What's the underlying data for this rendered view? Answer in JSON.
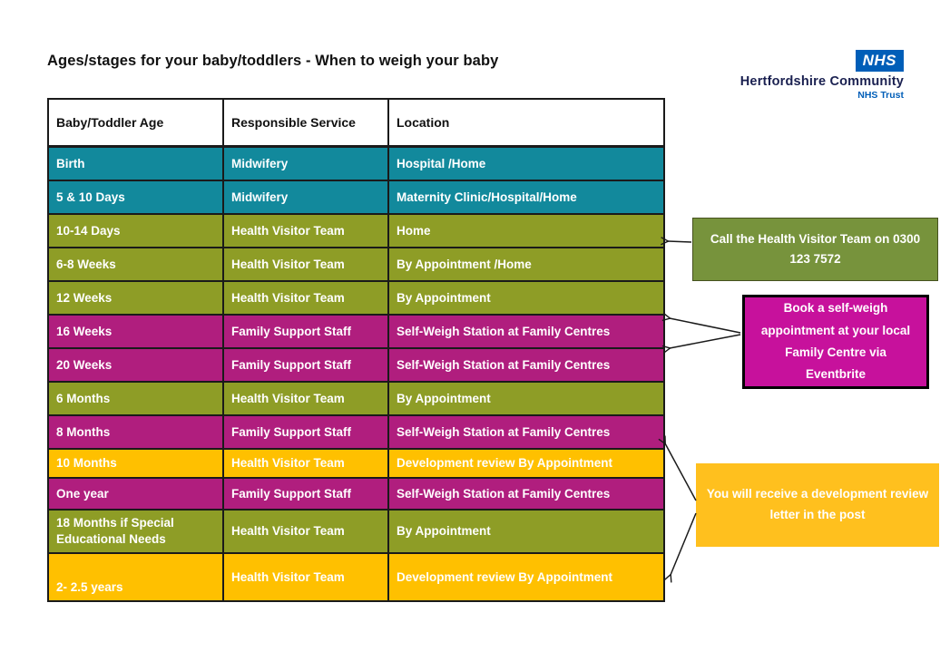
{
  "title": "Ages/stages for your baby/toddlers - When to weigh your baby",
  "logo": {
    "nhs": "NHS",
    "org": "Hertfordshire Community",
    "trust": "NHS Trust"
  },
  "colors": {
    "teal": "#12899C",
    "olive": "#8E9D26",
    "magenta": "#B01E7E",
    "yellow": "#FFC000",
    "callout_green": "#77933C",
    "callout_magenta": "#C7119C",
    "callout_yellow": "#FFC01E",
    "nhs_blue": "#005EB8"
  },
  "table": {
    "headers": [
      "Baby/Toddler Age",
      "Responsible Service",
      "Location"
    ],
    "rows": [
      {
        "age": "Birth",
        "service": "Midwifery",
        "location": "Hospital /Home",
        "color": "teal"
      },
      {
        "age": "5 & 10 Days",
        "service": "Midwifery",
        "location": "Maternity Clinic/Hospital/Home",
        "color": "teal"
      },
      {
        "age": "10-14 Days",
        "service": "Health Visitor Team",
        "location": "Home",
        "color": "olive"
      },
      {
        "age": "6-8 Weeks",
        "service": "Health Visitor Team",
        "location": "By Appointment /Home",
        "color": "olive"
      },
      {
        "age": "12 Weeks",
        "service": "Health Visitor Team",
        "location": "By Appointment",
        "color": "olive"
      },
      {
        "age": "16 Weeks",
        "service": "Family Support Staff",
        "location": "Self-Weigh Station at Family Centres",
        "color": "magenta"
      },
      {
        "age": "20 Weeks",
        "service": "Family Support Staff",
        "location": "Self-Weigh Station at Family Centres",
        "color": "magenta"
      },
      {
        "age": "6 Months",
        "service": "Health Visitor Team",
        "location": "By Appointment",
        "color": "olive"
      },
      {
        "age": "8 Months",
        "service": "Family Support Staff",
        "location": "Self-Weigh Station at Family Centres",
        "color": "magenta"
      },
      {
        "age": "10 Months",
        "service": "Health Visitor Team",
        "location": "Development review By Appointment",
        "color": "yellow"
      },
      {
        "age": "One year",
        "service": "Family Support Staff",
        "location": "Self-Weigh Station at Family Centres",
        "color": "magenta"
      },
      {
        "age": "18 Months if Special Educational Needs",
        "service": "Health Visitor Team",
        "location": "By Appointment",
        "color": "olive"
      },
      {
        "age": "2- 2.5 years",
        "service": "Health Visitor Team",
        "location": "Development review By Appointment",
        "color": "yellow"
      }
    ]
  },
  "callouts": [
    {
      "text": "Call the Health Visitor Team on 0300 123 7572"
    },
    {
      "text": "Book a self-weigh appointment at your local Family Centre via Eventbrite"
    },
    {
      "text": "You will receive a development review letter in the post"
    }
  ]
}
